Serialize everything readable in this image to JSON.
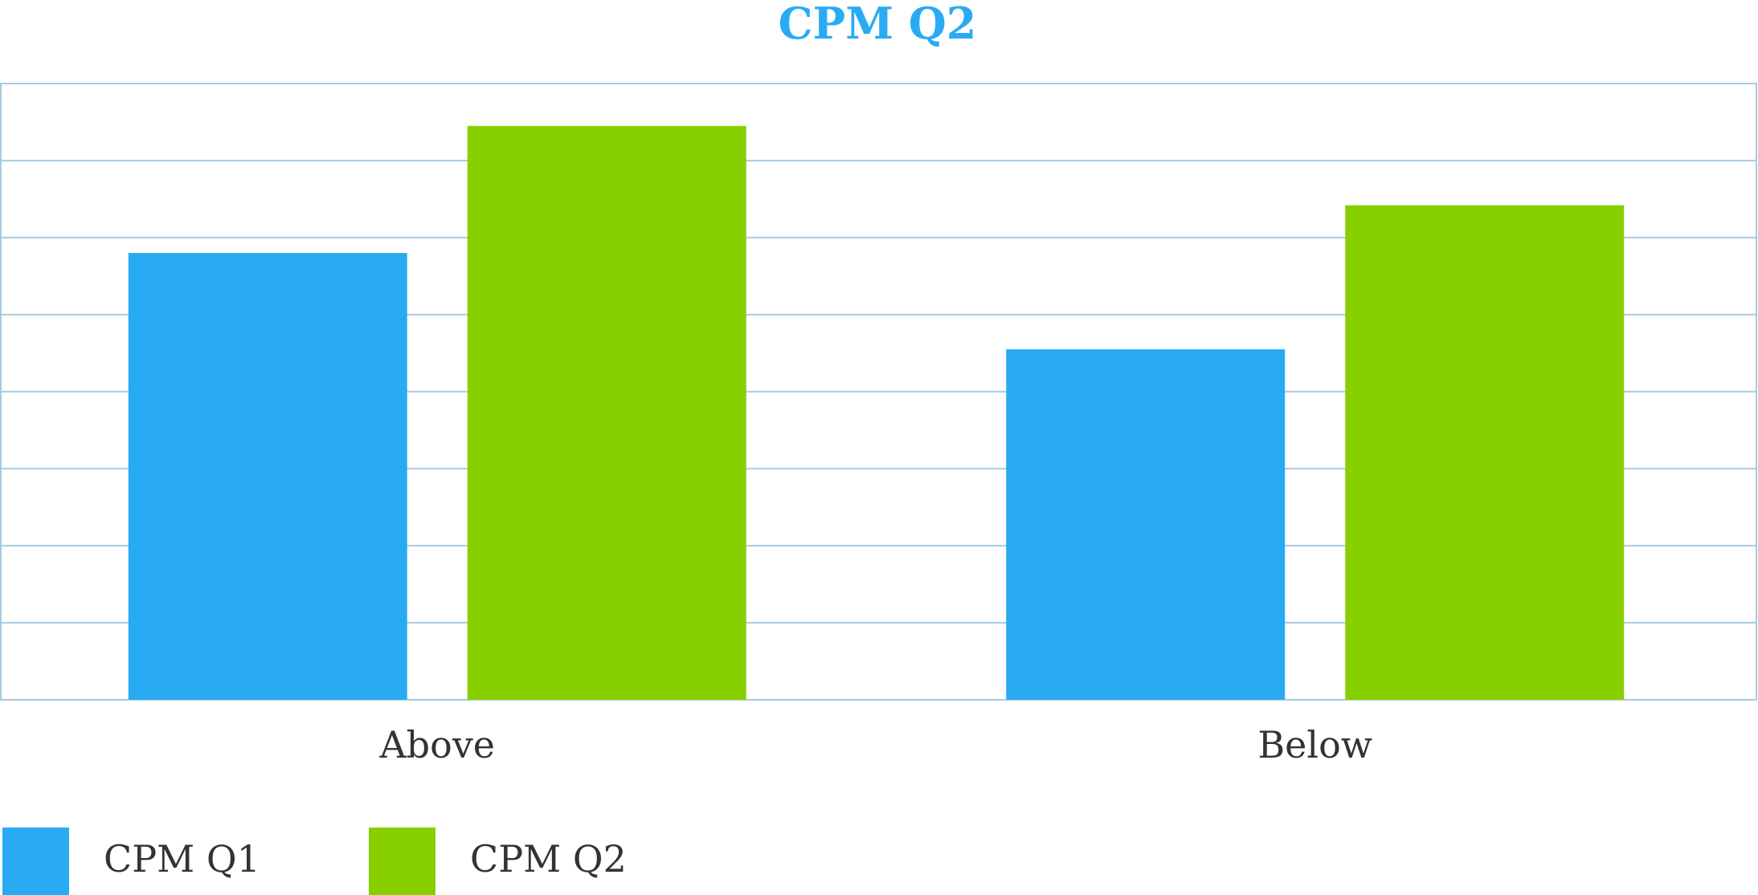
{
  "chart_data": {
    "type": "bar",
    "title": "CPM Q2",
    "categories": [
      "Above",
      "Below"
    ],
    "series": [
      {
        "name": "CPM Q1",
        "color": "#29abf3",
        "values": [
          5.8,
          4.55
        ]
      },
      {
        "name": "CPM Q2",
        "color": "#88cf00",
        "values": [
          7.45,
          6.42
        ]
      }
    ],
    "ylim": [
      0,
      8
    ],
    "grid": true,
    "legend": "bottom-left",
    "title_color": "#29abf3",
    "grid_color": "#a7cbe0"
  }
}
